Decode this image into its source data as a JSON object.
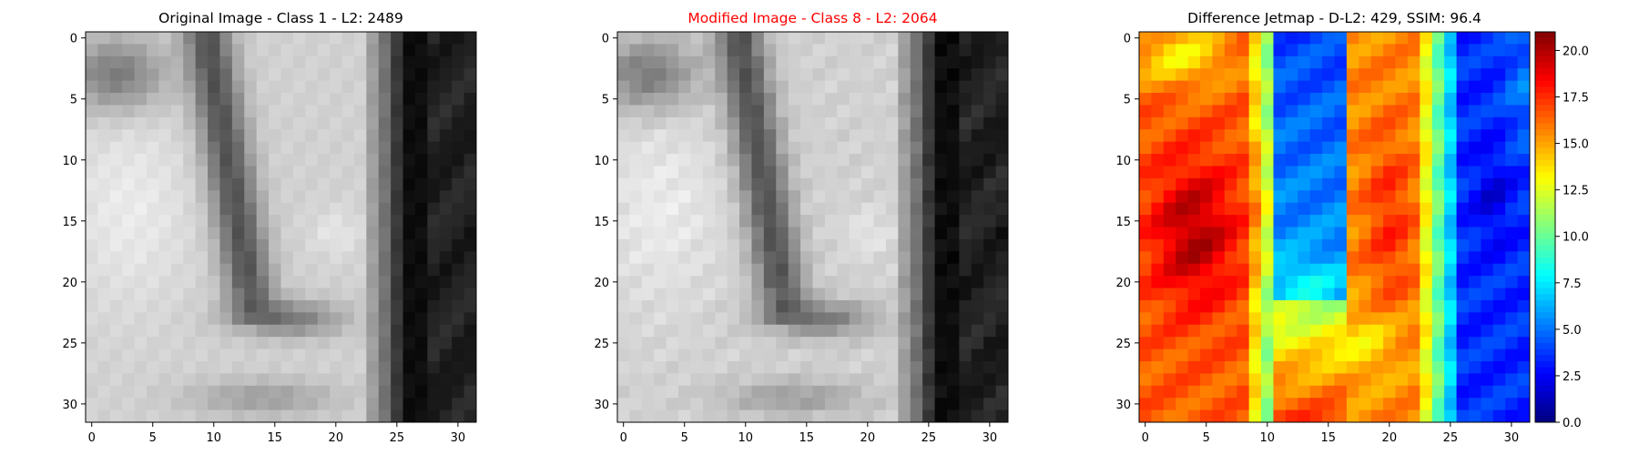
{
  "chart_data": [
    {
      "type": "heatmap",
      "title": "Original Image - Class 1 - L2: 2489",
      "title_color": "#000000",
      "colormap": "gray",
      "xlim": [
        0,
        31
      ],
      "ylim": [
        0,
        31
      ],
      "xticks": [
        0,
        5,
        10,
        15,
        20,
        25,
        30
      ],
      "yticks": [
        0,
        5,
        10,
        15,
        20,
        25,
        30
      ],
      "grid": false
    },
    {
      "type": "heatmap",
      "title": "Modified Image - Class 8 - L2: 2064",
      "title_color": "#ff0000",
      "colormap": "gray",
      "xlim": [
        0,
        31
      ],
      "ylim": [
        0,
        31
      ],
      "xticks": [
        0,
        5,
        10,
        15,
        20,
        25,
        30
      ],
      "yticks": [
        0,
        5,
        10,
        15,
        20,
        25,
        30
      ],
      "grid": false
    },
    {
      "type": "heatmap",
      "title": "Difference Jetmap - D-L2: 429, SSIM: 96.4",
      "title_color": "#000000",
      "colormap": "jet",
      "xlim": [
        0,
        31
      ],
      "ylim": [
        0,
        31
      ],
      "xticks": [
        0,
        5,
        10,
        15,
        20,
        25,
        30
      ],
      "yticks": [
        0,
        5,
        10,
        15,
        20,
        25,
        30
      ],
      "grid": false,
      "colorbar": {
        "min": 0.0,
        "max": 21.0,
        "ticks": [
          "0.0",
          "2.5",
          "5.0",
          "7.5",
          "10.0",
          "12.5",
          "15.0",
          "17.5",
          "20.0"
        ]
      }
    }
  ]
}
